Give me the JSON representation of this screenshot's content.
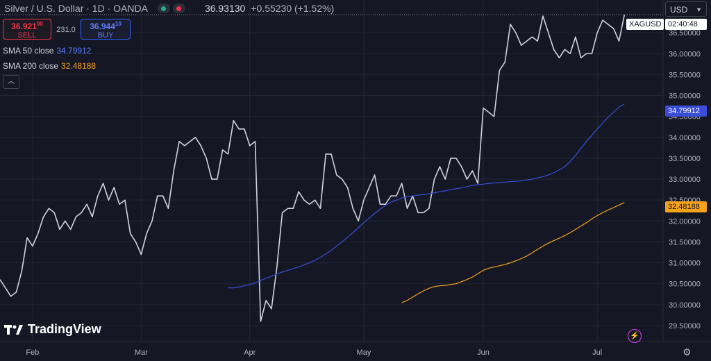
{
  "header": {
    "symbol": "Silver / U.S. Dollar · 1D · OANDA",
    "last": "36.93130",
    "change": "+0.55230 (+1.52%)"
  },
  "trade": {
    "sell_price": "36.921",
    "sell_price_sup": "00",
    "sell_label": "SELL",
    "spread": "231.0",
    "buy_price": "36.944",
    "buy_price_sup": "10",
    "buy_label": "BUY"
  },
  "currency": {
    "label": "USD"
  },
  "indicators": [
    {
      "label": "SMA 50 close",
      "value": "34.79912",
      "color": "#3a4dd8"
    },
    {
      "label": "SMA 200 close",
      "value": "32.48188",
      "color": "#f7a21b"
    }
  ],
  "price_tag": {
    "symbol": "XAGUSD",
    "countdown": "02:40:48"
  },
  "brand": {
    "name": "TradingView"
  },
  "colors": {
    "background": "#151824",
    "price_line": "#d1d4dc",
    "sma50": "#3a4dd8",
    "sma200": "#f7a21b",
    "grid": "#222635"
  },
  "chart_data": {
    "type": "line",
    "x_axis_labels": [
      {
        "label": "Feb",
        "index": 6
      },
      {
        "label": "Mar",
        "index": 26
      },
      {
        "label": "Apr",
        "index": 46
      },
      {
        "label": "May",
        "index": 67
      },
      {
        "label": "Jun",
        "index": 89
      },
      {
        "label": "Jul",
        "index": 110
      }
    ],
    "y_ticks": [
      "29.50000",
      "30.00000",
      "30.50000",
      "31.00000",
      "31.50000",
      "32.00000",
      "32.50000",
      "33.00000",
      "33.50000",
      "34.00000",
      "34.50000",
      "35.00000",
      "35.50000",
      "36.00000",
      "36.50000"
    ],
    "ylim": [
      29.3,
      37.15
    ],
    "series": [
      {
        "key": "price",
        "values": [
          30.6,
          30.4,
          30.2,
          30.3,
          30.8,
          31.6,
          31.4,
          31.7,
          32.1,
          32.3,
          32.2,
          31.8,
          32.0,
          31.8,
          32.1,
          32.2,
          32.4,
          32.1,
          32.6,
          32.9,
          32.5,
          32.8,
          32.4,
          32.5,
          31.7,
          31.5,
          31.2,
          31.7,
          32.0,
          32.6,
          32.6,
          32.3,
          33.2,
          33.9,
          33.8,
          33.9,
          34.0,
          33.8,
          33.5,
          33.0,
          33.0,
          33.7,
          33.6,
          34.4,
          34.2,
          34.2,
          33.8,
          33.9,
          29.6,
          30.1,
          29.9,
          30.9,
          32.2,
          32.3,
          32.3,
          32.7,
          32.5,
          32.4,
          32.5,
          32.3,
          33.6,
          33.6,
          33.1,
          33.0,
          32.8,
          32.3,
          32.0,
          32.5,
          32.8,
          33.1,
          32.4,
          32.4,
          32.6,
          32.6,
          32.9,
          32.3,
          32.6,
          32.2,
          32.2,
          32.3,
          33.0,
          33.3,
          33.0,
          33.5,
          33.5,
          33.3,
          33.0,
          33.2,
          32.9,
          34.7,
          34.6,
          34.5,
          35.6,
          35.8,
          36.7,
          36.5,
          36.2,
          36.3,
          36.4,
          36.3,
          36.9,
          36.5,
          36.1,
          35.9,
          36.1,
          36.0,
          36.4,
          35.9,
          36.0,
          36.0,
          36.5,
          36.8,
          36.7,
          36.6,
          36.3,
          36.93
        ]
      },
      {
        "key": "sma50",
        "values": [
          30.4,
          30.4,
          30.42,
          30.45,
          30.48,
          30.52,
          30.58,
          30.63,
          30.68,
          30.73,
          30.78,
          30.82,
          30.86,
          30.9,
          30.95,
          31.0,
          31.06,
          31.13,
          31.21,
          31.3,
          31.4,
          31.5,
          31.61,
          31.72,
          31.84,
          31.96,
          32.07,
          32.18,
          32.28,
          32.37,
          32.45,
          32.5,
          32.55,
          32.58,
          32.6,
          32.62,
          32.63,
          32.65,
          32.67,
          32.7,
          32.72,
          32.75,
          32.77,
          32.79,
          32.82,
          32.85,
          32.87,
          32.88,
          32.9,
          32.91,
          32.92,
          32.93,
          32.94,
          32.95,
          32.96,
          32.98,
          33.0,
          33.03,
          33.06,
          33.1,
          33.15,
          33.22,
          33.3,
          33.42,
          33.57,
          33.74,
          33.9,
          34.05,
          34.2,
          34.34,
          34.48,
          34.6,
          34.72,
          34.8
        ]
      },
      {
        "key": "sma200",
        "values": [
          30.05,
          30.1,
          30.18,
          30.26,
          30.33,
          30.39,
          30.43,
          30.45,
          30.46,
          30.48,
          30.5,
          30.55,
          30.6,
          30.66,
          30.74,
          30.82,
          30.87,
          30.9,
          30.93,
          30.96,
          31.0,
          31.05,
          31.1,
          31.16,
          31.24,
          31.32,
          31.4,
          31.47,
          31.53,
          31.59,
          31.65,
          31.72,
          31.8,
          31.88,
          31.96,
          32.05,
          32.13,
          32.2,
          32.26,
          32.32,
          32.38,
          32.44
        ]
      }
    ]
  }
}
